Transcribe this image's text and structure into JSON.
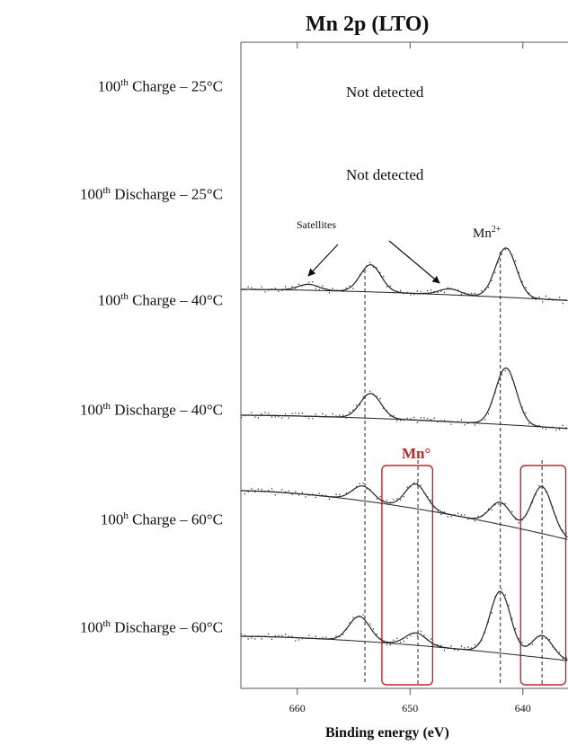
{
  "title": "Mn 2p (LTO)",
  "rows": [
    {
      "prefix": "100",
      "sup": "th",
      "label": " Charge – 25°C",
      "status": "Not detected"
    },
    {
      "prefix": "100",
      "sup": "th",
      "label": " Discharge  – 25°C",
      "status": "Not detected"
    },
    {
      "prefix": "100",
      "sup": "th",
      "label": " Charge – 40°C"
    },
    {
      "prefix": "100",
      "sup": "th",
      "label": " Discharge  – 40°C"
    },
    {
      "prefix": "100",
      "sup": "h",
      "label": " Charge – 60°C"
    },
    {
      "prefix": "100",
      "sup": "th",
      "label": " Discharge  – 60°C"
    }
  ],
  "annotations": {
    "satellites": "Satellites",
    "mn2_base": "Mn",
    "mn2_sup": "2+",
    "mn0": "Mn°"
  },
  "colors": {
    "highlight": "#c0272d",
    "trace": "#222222"
  },
  "chart_data": {
    "type": "line",
    "title": "Mn 2p (LTO)",
    "xlabel": "Binding energy (eV)",
    "ylabel": "",
    "x_reversed": true,
    "xlim": [
      665,
      636
    ],
    "xticks": [
      660,
      650,
      640
    ],
    "reference_lines_eV": [
      654,
      649.3,
      642,
      638.3
    ],
    "highlight_regions_eV": [
      [
        652.5,
        648
      ],
      [
        640.2,
        636.2
      ]
    ],
    "series": [
      {
        "label_index": 0,
        "detected": false
      },
      {
        "label_index": 1,
        "detected": false
      },
      {
        "label_index": 2,
        "detected": true,
        "peaks": [
          {
            "x": 641.5,
            "height": 1.0
          },
          {
            "x": 653.5,
            "height": 0.55
          },
          {
            "x": 646.5,
            "height": 0.12
          },
          {
            "x": 659.0,
            "height": 0.12
          }
        ],
        "background_drop": 0.25
      },
      {
        "label_index": 3,
        "detected": true,
        "peaks": [
          {
            "x": 641.5,
            "height": 1.15
          },
          {
            "x": 653.5,
            "height": 0.5
          }
        ],
        "background_drop": 0.3
      },
      {
        "label_index": 4,
        "detected": true,
        "peaks": [
          {
            "x": 638.3,
            "height": 0.95
          },
          {
            "x": 642.0,
            "height": 0.45
          },
          {
            "x": 649.5,
            "height": 0.5
          },
          {
            "x": 654.2,
            "height": 0.3
          }
        ],
        "background_drop": 1.1
      },
      {
        "label_index": 5,
        "detected": true,
        "peaks": [
          {
            "x": 642.0,
            "height": 1.25
          },
          {
            "x": 638.3,
            "height": 0.45
          },
          {
            "x": 649.5,
            "height": 0.25
          },
          {
            "x": 654.5,
            "height": 0.5
          }
        ],
        "background_drop": 0.55
      }
    ]
  }
}
